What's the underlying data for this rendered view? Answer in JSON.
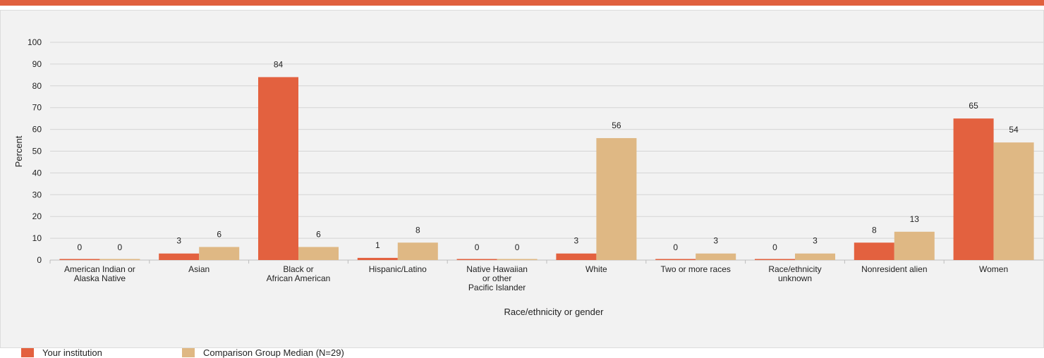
{
  "colors": {
    "accent_bar": "#e0603e",
    "series_institution": "#e3613f",
    "series_comparison": "#dfb884",
    "gridline": "#d4d4d4",
    "text": "#222222"
  },
  "legend": {
    "items": [
      {
        "label": "Your institution"
      },
      {
        "label": "Comparison Group Median (N=29)"
      }
    ]
  },
  "chart_data": {
    "type": "bar",
    "title": "",
    "xlabel": "Race/ethnicity or gender",
    "ylabel": "Percent",
    "ylim": [
      0,
      100
    ],
    "yticks": [
      "0",
      "10",
      "20",
      "30",
      "40",
      "50",
      "60",
      "70",
      "80",
      "90",
      "100"
    ],
    "grid": true,
    "legend_position": "bottom-left",
    "categories": [
      [
        "American Indian or",
        "Alaska Native"
      ],
      [
        "Asian"
      ],
      [
        "Black or",
        "African American"
      ],
      [
        "Hispanic/Latino"
      ],
      [
        "Native Hawaiian",
        "or other",
        "Pacific Islander"
      ],
      [
        "White"
      ],
      [
        "Two or more races"
      ],
      [
        "Race/ethnicity",
        "unknown"
      ],
      [
        "Nonresident alien"
      ],
      [
        "Women"
      ]
    ],
    "series": [
      {
        "name": "Your institution",
        "values": [
          0,
          3,
          84,
          1,
          0,
          3,
          0,
          0,
          8,
          65
        ]
      },
      {
        "name": "Comparison Group Median (N=29)",
        "values": [
          0,
          6,
          6,
          8,
          0,
          56,
          3,
          3,
          13,
          54
        ]
      }
    ]
  }
}
